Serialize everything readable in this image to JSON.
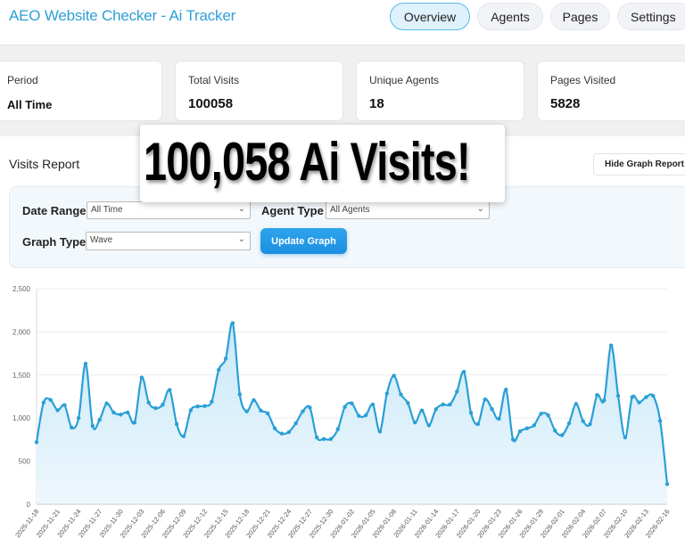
{
  "header": {
    "title": "AEO Website Checker - Ai Tracker",
    "nav": [
      {
        "label": "Overview",
        "active": true
      },
      {
        "label": "Agents"
      },
      {
        "label": "Pages"
      },
      {
        "label": "Settings"
      }
    ]
  },
  "stats": [
    {
      "label": "Period",
      "value": "All Time"
    },
    {
      "label": "Total Visits",
      "value": "100058"
    },
    {
      "label": "Unique Agents",
      "value": "18"
    },
    {
      "label": "Pages Visited",
      "value": "5828"
    }
  ],
  "overlay": {
    "text": "100,058 Ai Visits!"
  },
  "report": {
    "title": "Visits Report",
    "hide_button": "Hide Graph Report",
    "filters": {
      "date_range_label": "Date Range",
      "date_range_value": "All Time",
      "agent_type_label": "Agent Type",
      "agent_type_value": "All Agents",
      "graph_type_label": "Graph Type",
      "graph_type_value": "Wave",
      "update_button": "Update Graph"
    }
  },
  "colors": {
    "accent": "#2d9fd8",
    "line": "#2a9fd6",
    "fill": "#d9f0fb"
  },
  "chart_data": {
    "type": "area",
    "ylim": [
      0,
      2500
    ],
    "yticks": [
      0,
      500,
      1000,
      1500,
      2000,
      2500
    ],
    "ytick_labels": [
      "0",
      "500",
      "1,000",
      "1,500",
      "2,000",
      "2,500"
    ],
    "grid": true,
    "x": [
      "2025-11-18",
      "2025-11-19",
      "2025-11-20",
      "2025-11-21",
      "2025-11-22",
      "2025-11-23",
      "2025-11-24",
      "2025-11-25",
      "2025-11-26",
      "2025-11-27",
      "2025-11-28",
      "2025-11-29",
      "2025-11-30",
      "2025-12-01",
      "2025-12-02",
      "2025-12-03",
      "2025-12-04",
      "2025-12-05",
      "2025-12-06",
      "2025-12-07",
      "2025-12-08",
      "2025-12-09",
      "2025-12-10",
      "2025-12-11",
      "2025-12-12",
      "2025-12-13",
      "2025-12-14",
      "2025-12-15",
      "2025-12-16",
      "2025-12-17",
      "2025-12-18",
      "2025-12-19",
      "2025-12-20",
      "2025-12-21",
      "2025-12-22",
      "2025-12-23",
      "2025-12-24",
      "2025-12-25",
      "2025-12-26",
      "2025-12-27",
      "2025-12-28",
      "2025-12-29",
      "2025-12-30",
      "2025-12-31",
      "2026-01-01",
      "2026-01-02",
      "2026-01-03",
      "2026-01-04",
      "2026-01-05",
      "2026-01-06",
      "2026-01-07",
      "2026-01-08",
      "2026-01-09",
      "2026-01-10",
      "2026-01-11",
      "2026-01-12",
      "2026-01-13",
      "2026-01-14",
      "2026-01-15",
      "2026-01-16",
      "2026-01-17",
      "2026-01-18",
      "2026-01-19",
      "2026-01-20",
      "2026-01-21",
      "2026-01-22",
      "2026-01-23",
      "2026-01-24",
      "2026-01-25",
      "2026-01-26",
      "2026-01-27",
      "2026-01-28",
      "2026-01-29",
      "2026-01-30",
      "2026-01-31",
      "2026-02-01",
      "2026-02-02",
      "2026-02-03",
      "2026-02-04",
      "2026-02-05",
      "2026-02-06",
      "2026-02-07",
      "2026-02-08",
      "2026-02-09",
      "2026-02-10",
      "2026-02-11",
      "2026-02-12",
      "2026-02-13",
      "2026-02-14",
      "2026-02-15",
      "2026-02-16"
    ],
    "values": [
      720,
      1180,
      1210,
      1090,
      1150,
      890,
      1000,
      1630,
      910,
      980,
      1170,
      1065,
      1040,
      1065,
      950,
      1470,
      1180,
      1115,
      1155,
      1325,
      930,
      790,
      1090,
      1135,
      1140,
      1190,
      1560,
      1690,
      2100,
      1274,
      1078,
      1208,
      1088,
      1053,
      881,
      820,
      837,
      940,
      1078,
      1123,
      775,
      757,
      757,
      871,
      1129,
      1170,
      1026,
      1033,
      1157,
      844,
      1284,
      1491,
      1274,
      1174,
      950,
      1088,
      916,
      1102,
      1157,
      1157,
      1308,
      1536,
      1061,
      930,
      1216,
      1105,
      992,
      1330,
      751,
      847,
      881,
      916,
      1050,
      1033,
      854,
      802,
      940,
      1164,
      964,
      930,
      1267,
      1205,
      1842,
      1260,
      775,
      1243,
      1181,
      1243,
      1257,
      968,
      234
    ],
    "xtick_every": 3
  }
}
